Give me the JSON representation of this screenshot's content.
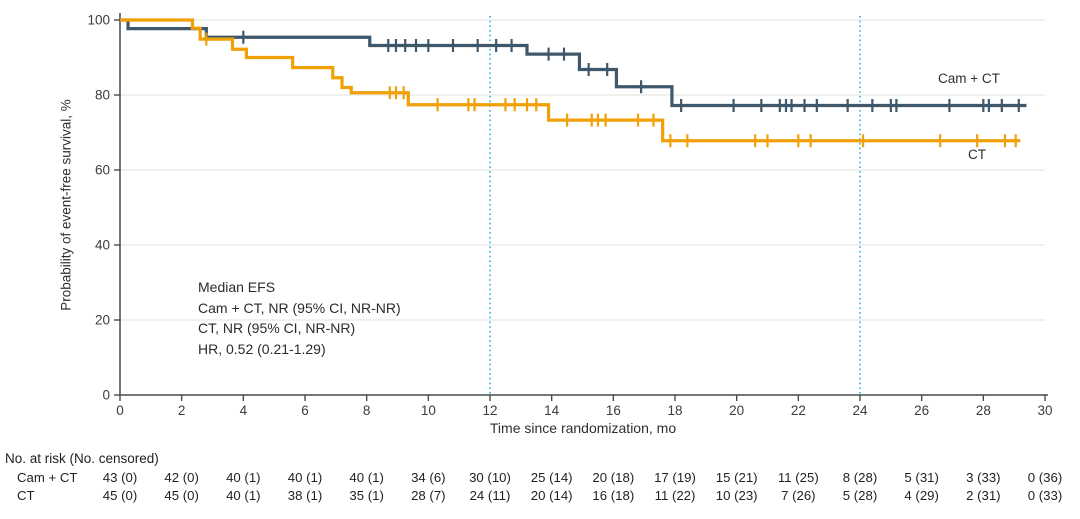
{
  "colors": {
    "cam_ct": "#3f586b",
    "ct": "#f1a106",
    "reference_line": "#3ab6e9",
    "grid": "#e8e6e2",
    "axis": "#4a4a4a",
    "text": "#333333"
  },
  "chart_data": {
    "type": "line",
    "subtype": "kaplan-meier-step",
    "title": "",
    "xlabel": "Time since randomization, mo",
    "ylabel": "Probability of event-free survival, %",
    "xlim": [
      0,
      30
    ],
    "ylim": [
      0,
      100
    ],
    "x_ticks": [
      0,
      2,
      4,
      6,
      8,
      10,
      12,
      14,
      16,
      18,
      20,
      22,
      24,
      26,
      28,
      30
    ],
    "y_ticks": [
      0,
      20,
      40,
      60,
      80,
      100
    ],
    "grid": "horizontal-light",
    "reference_lines_x": [
      12,
      24
    ],
    "legend_position": "labels-at-line-end",
    "series": [
      {
        "name": "Cam + CT",
        "label": "Cam + CT",
        "color_key": "cam_ct",
        "steps": [
          [
            0,
            100
          ],
          [
            0.26,
            97.7
          ],
          [
            2.8,
            95.4
          ],
          [
            8.1,
            93.2
          ],
          [
            13.2,
            90.9
          ],
          [
            14.9,
            86.8
          ],
          [
            16.1,
            82.2
          ],
          [
            17.9,
            77.2
          ]
        ],
        "end": 29.4,
        "censors": [
          [
            4.0,
            95.4
          ],
          [
            8.7,
            93.2
          ],
          [
            8.95,
            93.2
          ],
          [
            9.25,
            93.2
          ],
          [
            9.6,
            93.2
          ],
          [
            10.0,
            93.2
          ],
          [
            10.8,
            93.2
          ],
          [
            11.6,
            93.2
          ],
          [
            12.2,
            93.2
          ],
          [
            12.7,
            93.2
          ],
          [
            13.9,
            90.9
          ],
          [
            14.4,
            90.9
          ],
          [
            15.2,
            86.8
          ],
          [
            15.8,
            86.8
          ],
          [
            16.9,
            82.2
          ],
          [
            18.2,
            77.2
          ],
          [
            19.9,
            77.2
          ],
          [
            20.8,
            77.2
          ],
          [
            21.4,
            77.2
          ],
          [
            21.6,
            77.2
          ],
          [
            21.78,
            77.2
          ],
          [
            22.2,
            77.2
          ],
          [
            22.6,
            77.2
          ],
          [
            23.6,
            77.2
          ],
          [
            24.4,
            77.2
          ],
          [
            25.0,
            77.2
          ],
          [
            25.18,
            77.2
          ],
          [
            26.9,
            77.2
          ],
          [
            28.0,
            77.2
          ],
          [
            28.18,
            77.2
          ],
          [
            28.6,
            77.2
          ],
          [
            29.15,
            77.2
          ]
        ]
      },
      {
        "name": "CT",
        "label": "CT",
        "color_key": "ct",
        "steps": [
          [
            0,
            100
          ],
          [
            2.35,
            97.8
          ],
          [
            2.6,
            94.9
          ],
          [
            3.65,
            92.2
          ],
          [
            4.1,
            90.0
          ],
          [
            5.6,
            87.3
          ],
          [
            6.9,
            84.6
          ],
          [
            7.2,
            82.0
          ],
          [
            7.5,
            80.6
          ],
          [
            9.35,
            77.4
          ],
          [
            13.9,
            73.3
          ],
          [
            17.6,
            67.8
          ]
        ],
        "end": 29.2,
        "censors": [
          [
            2.8,
            94.9
          ],
          [
            8.75,
            80.6
          ],
          [
            8.95,
            80.6
          ],
          [
            9.2,
            80.6
          ],
          [
            10.3,
            77.4
          ],
          [
            11.3,
            77.4
          ],
          [
            11.5,
            77.4
          ],
          [
            12.5,
            77.4
          ],
          [
            12.8,
            77.4
          ],
          [
            13.2,
            77.4
          ],
          [
            13.5,
            77.4
          ],
          [
            14.5,
            73.3
          ],
          [
            15.3,
            73.3
          ],
          [
            15.5,
            73.3
          ],
          [
            15.75,
            73.3
          ],
          [
            16.8,
            73.3
          ],
          [
            17.3,
            73.3
          ],
          [
            17.85,
            67.8
          ],
          [
            18.4,
            67.8
          ],
          [
            20.6,
            67.8
          ],
          [
            21.0,
            67.8
          ],
          [
            22.0,
            67.8
          ],
          [
            22.4,
            67.8
          ],
          [
            24.1,
            67.8
          ],
          [
            26.6,
            67.8
          ],
          [
            27.8,
            67.8
          ],
          [
            28.7,
            67.8
          ],
          [
            29.05,
            67.8
          ]
        ]
      }
    ]
  },
  "annotation": {
    "line1": "Median EFS",
    "line2": "Cam + CT, NR (95% CI, NR-NR)",
    "line3": "CT, NR (95% CI, NR-NR)",
    "line4": "HR, 0.52 (0.21-1.29)"
  },
  "risk_table": {
    "header": "No. at risk (No. censored)",
    "time_points": [
      0,
      2,
      4,
      6,
      8,
      10,
      12,
      14,
      16,
      18,
      20,
      22,
      24,
      26,
      28,
      30
    ],
    "rows": [
      {
        "label": "Cam + CT",
        "values": [
          "43 (0)",
          "42 (0)",
          "40 (1)",
          "40 (1)",
          "40 (1)",
          "34 (6)",
          "30 (10)",
          "25 (14)",
          "20 (18)",
          "17 (19)",
          "15 (21)",
          "11 (25)",
          "8 (28)",
          "5 (31)",
          "3 (33)",
          "0 (36)"
        ]
      },
      {
        "label": "CT",
        "values": [
          "45 (0)",
          "45 (0)",
          "40 (1)",
          "38 (1)",
          "35 (1)",
          "28 (7)",
          "24 (11)",
          "20 (14)",
          "16 (18)",
          "11 (22)",
          "10 (23)",
          "7 (26)",
          "5 (28)",
          "4 (29)",
          "2 (31)",
          "0 (33)"
        ]
      }
    ]
  }
}
